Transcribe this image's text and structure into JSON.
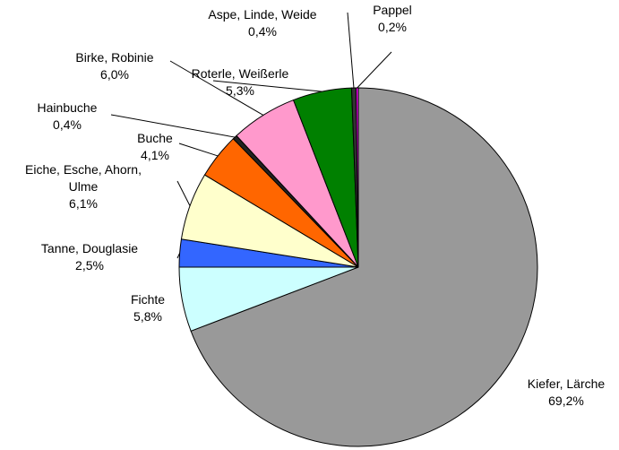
{
  "chart_data": {
    "type": "pie",
    "categories": [
      "Kiefer, Lärche",
      "Fichte",
      "Tanne, Douglasie",
      "Eiche, Esche, Ahorn, Ulme",
      "Buche",
      "Hainbuche",
      "Birke, Robinie",
      "Roterle, Weißerle",
      "Aspe, Linde, Weide",
      "Pappel"
    ],
    "values": [
      69.2,
      5.8,
      2.5,
      6.1,
      4.1,
      0.4,
      6.0,
      5.3,
      0.4,
      0.2
    ],
    "value_labels": [
      "69,2%",
      "5,8%",
      "2,5%",
      "6,1%",
      "4,1%",
      "0,4%",
      "6,0%",
      "5,3%",
      "0,4%",
      "0,2%"
    ],
    "colors": [
      "#999999",
      "#ccffff",
      "#3366ff",
      "#ffffcc",
      "#ff6600",
      "#222222",
      "#ff99cc",
      "#008000",
      "#333333",
      "#ff00ff"
    ]
  }
}
